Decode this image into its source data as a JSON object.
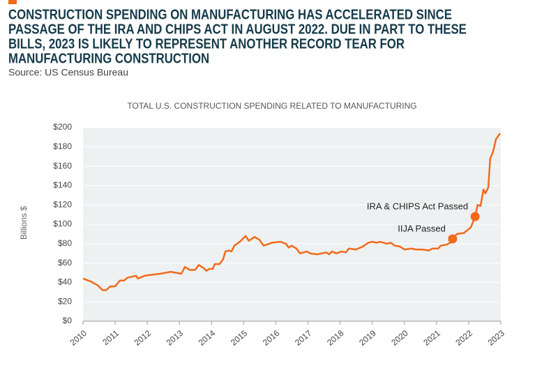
{
  "header": {
    "title_lines": [
      "CONSTRUCTION SPENDING ON MANUFACTURING HAS ACCELERATED SINCE",
      "PASSAGE OF THE IRA AND CHIPS ACT IN AUGUST 2022. DUE IN PART TO THESE",
      "BILLS, 2023 IS LIKELY TO REPRESENT ANOTHER RECORD TEAR FOR",
      "MANUFACTURING CONSTRUCTION"
    ],
    "source": "Source: US Census Bureau"
  },
  "chart_data": {
    "type": "line",
    "title": "TOTAL U.S. CONSTRUCTION SPENDING RELATED TO MANUFACTURING",
    "ylabel": "Billions $",
    "x": [
      2010.0,
      2010.24,
      2010.46,
      2010.61,
      2010.72,
      2010.85,
      2011.0,
      2011.15,
      2011.28,
      2011.39,
      2011.54,
      2011.65,
      2011.71,
      2011.93,
      2012.41,
      2012.73,
      2012.89,
      2013.06,
      2013.17,
      2013.32,
      2013.49,
      2013.6,
      2013.75,
      2013.84,
      2013.93,
      2014.04,
      2014.1,
      2014.25,
      2014.36,
      2014.43,
      2014.54,
      2014.62,
      2014.71,
      2014.88,
      2015.06,
      2015.16,
      2015.34,
      2015.49,
      2015.62,
      2015.88,
      2016.14,
      2016.31,
      2016.4,
      2016.49,
      2016.64,
      2016.75,
      2016.97,
      2017.07,
      2017.29,
      2017.57,
      2017.66,
      2017.75,
      2017.88,
      2018.05,
      2018.18,
      2018.27,
      2018.49,
      2018.7,
      2018.88,
      2019.01,
      2019.14,
      2019.24,
      2019.46,
      2019.57,
      2019.7,
      2019.87,
      2020.0,
      2020.22,
      2020.35,
      2020.55,
      2020.76,
      2020.87,
      2021.05,
      2021.13,
      2021.31,
      2021.42,
      2021.5,
      2021.63,
      2021.85,
      2022.07,
      2022.2,
      2022.28,
      2022.37,
      2022.46,
      2022.52,
      2022.61,
      2022.67,
      2022.76,
      2022.85,
      2022.98
    ],
    "series": [
      {
        "name": "Construction spending",
        "color": "#f26a1b",
        "values": [
          44,
          41,
          37,
          32,
          32,
          36,
          36,
          42,
          42,
          45,
          46,
          47,
          44,
          47,
          49,
          51,
          50,
          49,
          56,
          53,
          53,
          58,
          55,
          52,
          54,
          54,
          59,
          59,
          64,
          72,
          73,
          72,
          78,
          82,
          88,
          83,
          87,
          84,
          78,
          81,
          82,
          80,
          76,
          78,
          75,
          70,
          72,
          70,
          69,
          71,
          69,
          72,
          70,
          72,
          71,
          75,
          74,
          77,
          81,
          82,
          81,
          82,
          80,
          81,
          78,
          77,
          74,
          75,
          74,
          74,
          73,
          75,
          75,
          78,
          79,
          81,
          85,
          90,
          91,
          97,
          108,
          120,
          119,
          136,
          132,
          138,
          168,
          175,
          188,
          194
        ]
      }
    ],
    "annotations": [
      {
        "text": "IRA & CHIPS Act Passed",
        "x": 2022.2,
        "y": 108
      },
      {
        "text": "IIJA Passed",
        "x": 2021.5,
        "y": 85
      }
    ],
    "xlim": [
      2010,
      2023
    ],
    "xticks": [
      2010,
      2011,
      2012,
      2013,
      2014,
      2015,
      2016,
      2017,
      2018,
      2019,
      2020,
      2021,
      2022,
      2023
    ],
    "ylim": [
      0,
      200
    ],
    "yticks": [
      {
        "value": 0,
        "label": "$0"
      },
      {
        "value": 20,
        "label": "$20"
      },
      {
        "value": 40,
        "label": "$40"
      },
      {
        "value": 60,
        "label": "$60"
      },
      {
        "value": 80,
        "label": "$80"
      },
      {
        "value": 100,
        "label": "$100"
      },
      {
        "value": 120,
        "label": "$120"
      },
      {
        "value": 140,
        "label": "$140"
      },
      {
        "value": 160,
        "label": "$160"
      },
      {
        "value": 180,
        "label": "$180"
      },
      {
        "value": 200,
        "label": "$200"
      }
    ],
    "grid": true
  }
}
